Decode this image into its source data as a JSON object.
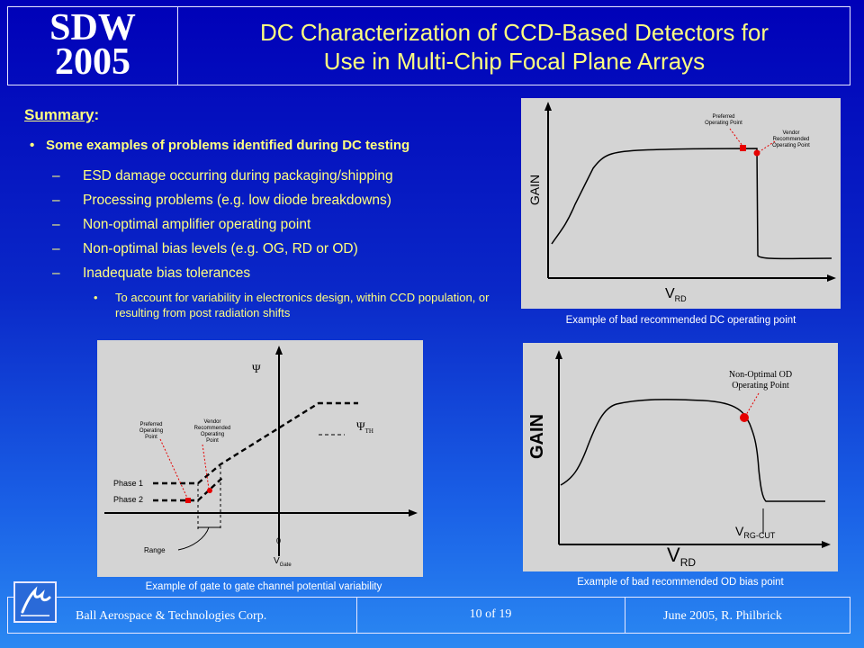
{
  "header": {
    "logo_line1": "SDW",
    "logo_line2": "2005",
    "title_line1": "DC Characterization of CCD-Based Detectors for",
    "title_line2": "Use in Multi-Chip Focal Plane Arrays"
  },
  "summary": {
    "heading": "Summary",
    "heading_suffix": ":",
    "bullet": "Some examples of problems identified during DC testing",
    "items": [
      "ESD damage occurring during packaging/shipping",
      "Processing problems (e.g. low diode breakdowns)",
      "Non-optimal amplifier operating point",
      "Non-optimal bias levels (e.g. OG, RD or OD)",
      "Inadequate bias tolerances"
    ],
    "sub_item": "To account for variability in electronics design, within CCD population, or resulting from post radiation shifts"
  },
  "plot_dc": {
    "ylabel": "GAIN",
    "xlabel_main": "V",
    "xlabel_sub": "RD",
    "label_preferred": "Preferred Operating Point",
    "label_vendor": "Vendor Recommended Operating Point",
    "caption": "Example of bad recommended DC operating point"
  },
  "plot_gate": {
    "psi": "Ψ",
    "psi_th_main": "Ψ",
    "psi_th_sub": "TH",
    "phase1": "Phase 1",
    "phase2": "Phase 2",
    "label_preferred": "Preferred Operating Point",
    "label_vendor": "Vendor Recommended Operating Point",
    "range": "Range",
    "zero": "0",
    "xlabel_main": "V",
    "xlabel_sub": "Gate",
    "caption": "Example of gate to gate channel potential variability"
  },
  "plot_od": {
    "ylabel": "GAIN",
    "annotation_line1": "Non-Optimal OD",
    "annotation_line2": "Operating Point",
    "cut_main": "V",
    "cut_sub": "RG-CUT",
    "xlabel_main": "V",
    "xlabel_sub": "RD",
    "caption": "Example of bad recommended OD bias point"
  },
  "footer": {
    "company": "Ball Aerospace & Technologies Corp.",
    "page": "10  of  19",
    "date_author": "June 2005,  R.  Philbrick"
  },
  "colors": {
    "title": "#ffff80",
    "marker": "#e60000",
    "panel": "#d4d4d4"
  }
}
